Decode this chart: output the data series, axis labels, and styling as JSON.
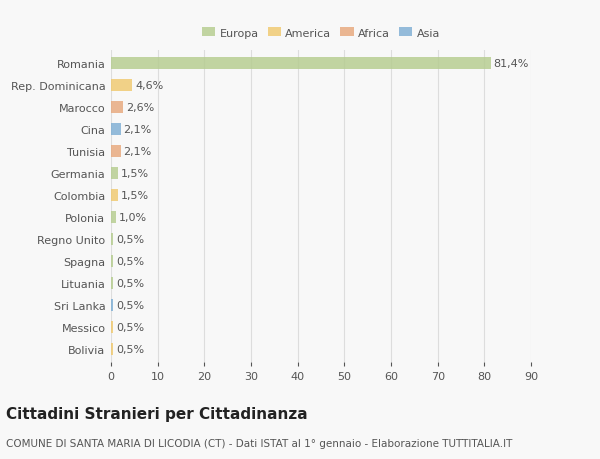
{
  "countries": [
    "Romania",
    "Rep. Dominicana",
    "Marocco",
    "Cina",
    "Tunisia",
    "Germania",
    "Colombia",
    "Polonia",
    "Regno Unito",
    "Spagna",
    "Lituania",
    "Sri Lanka",
    "Messico",
    "Bolivia"
  ],
  "values": [
    81.4,
    4.6,
    2.6,
    2.1,
    2.1,
    1.5,
    1.5,
    1.0,
    0.5,
    0.5,
    0.5,
    0.5,
    0.5,
    0.5
  ],
  "labels": [
    "81,4%",
    "4,6%",
    "2,6%",
    "2,1%",
    "2,1%",
    "1,5%",
    "1,5%",
    "1,0%",
    "0,5%",
    "0,5%",
    "0,5%",
    "0,5%",
    "0,5%",
    "0,5%"
  ],
  "continents": [
    "Europa",
    "America",
    "Africa",
    "Asia",
    "Africa",
    "Europa",
    "America",
    "Europa",
    "Europa",
    "Europa",
    "Europa",
    "Asia",
    "America",
    "America"
  ],
  "continent_colors": {
    "Europa": "#b5cc8e",
    "America": "#f0c96e",
    "Africa": "#e8a87c",
    "Asia": "#7eaed4"
  },
  "legend_order": [
    "Europa",
    "America",
    "Africa",
    "Asia"
  ],
  "legend_colors": [
    "#b5cc8e",
    "#f0c96e",
    "#e8a87c",
    "#7eaed4"
  ],
  "xlim": [
    0,
    90
  ],
  "xticks": [
    0,
    10,
    20,
    30,
    40,
    50,
    60,
    70,
    80,
    90
  ],
  "title": "Cittadini Stranieri per Cittadinanza",
  "subtitle": "COMUNE DI SANTA MARIA DI LICODIA (CT) - Dati ISTAT al 1° gennaio - Elaborazione TUTTITALIA.IT",
  "background_color": "#f8f8f8",
  "grid_color": "#dddddd",
  "bar_height": 0.55,
  "text_color": "#555555",
  "label_fontsize": 8,
  "title_fontsize": 11,
  "subtitle_fontsize": 7.5
}
